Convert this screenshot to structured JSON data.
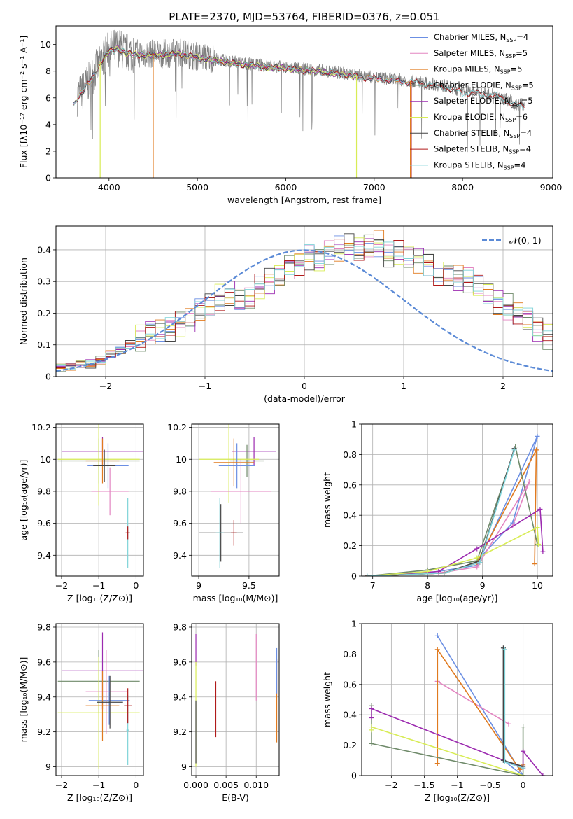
{
  "colors": {
    "Chabrier MILES": "#6b8fe3",
    "Salpeter MILES": "#e385c1",
    "Kroupa MILES": "#e07a1f",
    "Chabrier ELODIE": "#6f8a6a",
    "Salpeter ELODIE": "#9c2bb0",
    "Kroupa ELODIE": "#d8ec56",
    "Chabrier STELIB": "#444444",
    "Salpeter STELIB": "#b01a1a",
    "Kroupa STELIB": "#7fd3d8",
    "spectrum": "#808080",
    "normal": "#5b8ad6"
  },
  "chart_data": [
    {
      "id": "spectrum",
      "type": "line",
      "title": "PLATE=2370, MJD=53764, FIBERID=0376, z=0.051",
      "xlabel": "wavelength [Angstrom, rest frame]",
      "ylabel": "Flux [fλ10⁻¹⁷ erg cm⁻² s⁻¹ A⁻¹]",
      "xlim": [
        3400,
        9020
      ],
      "ylim": [
        0,
        11.4
      ],
      "xticks": [
        4000,
        5000,
        6000,
        7000,
        8000,
        9000
      ],
      "yticks": [
        0,
        2,
        4,
        6,
        8,
        10
      ],
      "grid": false,
      "legend_position": "top-right",
      "legend": [
        {
          "model": "Chabrier MILES",
          "label": "Chabrier MILES, N",
          "sub": "SSP",
          "tail": "=4"
        },
        {
          "model": "Salpeter MILES",
          "label": "Salpeter MILES, N",
          "sub": "SSP",
          "tail": "=5"
        },
        {
          "model": "Kroupa MILES",
          "label": "Kroupa MILES, N",
          "sub": "SSP",
          "tail": "=5"
        },
        {
          "model": "Chabrier ELODIE",
          "label": "Chabrier ELODIE, N",
          "sub": "SSP",
          "tail": "=5"
        },
        {
          "model": "Salpeter ELODIE",
          "label": "Salpeter ELODIE, N",
          "sub": "SSP",
          "tail": "=5"
        },
        {
          "model": "Kroupa ELODIE",
          "label": "Kroupa ELODIE, N",
          "sub": "SSP",
          "tail": "=6"
        },
        {
          "model": "Chabrier STELIB",
          "label": "Chabrier STELIB, N",
          "sub": "SSP",
          "tail": "=4"
        },
        {
          "model": "Salpeter STELIB",
          "label": "Salpeter STELIB, N",
          "sub": "SSP",
          "tail": "=4"
        },
        {
          "model": "Kroupa STELIB",
          "label": "Kroupa STELIB, N",
          "sub": "SSP",
          "tail": "=4"
        }
      ],
      "model_continuum": {
        "x": [
          3600,
          3650,
          3700,
          3800,
          3900,
          4000,
          4100,
          4200,
          4400,
          4600,
          4800,
          5000,
          5200,
          5500,
          5800,
          6000,
          6300,
          6600,
          6900,
          7200,
          7500,
          7800,
          8000,
          8200,
          8400,
          8600
        ],
        "y": [
          5.6,
          6.2,
          6.5,
          7.5,
          8.7,
          9.6,
          9.8,
          9.4,
          9.3,
          9.3,
          9.4,
          9.1,
          8.9,
          8.6,
          8.4,
          8.3,
          8.1,
          7.9,
          7.6,
          7.4,
          7.2,
          6.9,
          6.5,
          6.4,
          6.2,
          5.5
        ]
      },
      "model_spans": {
        "Chabrier MILES": [
          3600,
          7400
        ],
        "Salpeter MILES": [
          3600,
          7400
        ],
        "Kroupa MILES": [
          3600,
          7400
        ],
        "Chabrier ELODIE": [
          3900,
          6800
        ],
        "Salpeter ELODIE": [
          3900,
          6800
        ],
        "Kroupa ELODIE": [
          3900,
          6800
        ],
        "Chabrier STELIB": [
          3600,
          8700
        ],
        "Salpeter STELIB": [
          3600,
          8700
        ],
        "Kroupa STELIB": [
          3600,
          8700
        ]
      },
      "dropouts": [
        {
          "model": "Kroupa MILES",
          "x": 4500
        },
        {
          "model": "Kroupa ELODIE",
          "x": 3900
        },
        {
          "model": "Kroupa ELODIE",
          "x": 6800
        },
        {
          "model": "Salpeter STELIB",
          "x": 7420
        },
        {
          "model": "Kroupa MILES",
          "x": 7410
        }
      ]
    },
    {
      "id": "residuals",
      "type": "line",
      "xlabel": "(data-model)/error",
      "ylabel": "Normed distribution",
      "xlim": [
        -2.5,
        2.5
      ],
      "ylim": [
        0,
        0.475
      ],
      "xticks": [
        -2,
        -1,
        0,
        1,
        2
      ],
      "yticks": [
        0.0,
        0.1,
        0.2,
        0.3,
        0.4
      ],
      "grid": true,
      "legend_position": "top-right",
      "legend_label": "𝒩(0, 1)",
      "bin_width": 0.1,
      "bin_start": -2.5,
      "base_hist": [
        0.03,
        0.03,
        0.04,
        0.04,
        0.05,
        0.07,
        0.08,
        0.1,
        0.12,
        0.14,
        0.15,
        0.15,
        0.17,
        0.18,
        0.21,
        0.23,
        0.25,
        0.26,
        0.24,
        0.24,
        0.28,
        0.3,
        0.32,
        0.35,
        0.36,
        0.38,
        0.37,
        0.39,
        0.4,
        0.41,
        0.4,
        0.41,
        0.42,
        0.38,
        0.39,
        0.38,
        0.37,
        0.36,
        0.33,
        0.32,
        0.31,
        0.3,
        0.28,
        0.26,
        0.23,
        0.22,
        0.2,
        0.18,
        0.15,
        0.13,
        0.11,
        0.09,
        0.07,
        0.06,
        0.06,
        0.05,
        0.05,
        0.04,
        0.04,
        0.03,
        0.03,
        0.03,
        0.03,
        0.03,
        0.02,
        0.02,
        0.02,
        0.02,
        0.02,
        0.02,
        0.02,
        0.02
      ]
    },
    {
      "id": "age-vs-Z",
      "type": "scatter",
      "xlabel": "Z [log₁₀(Z/Z⊙)]",
      "ylabel": "age  [log₁₀(age/yr)]",
      "xlim": [
        -2.15,
        0.2
      ],
      "ylim": [
        9.27,
        10.22
      ],
      "xticks": [
        -2,
        -1,
        0
      ],
      "yticks": [
        9.4,
        9.6,
        9.8,
        10.0,
        10.2
      ],
      "grid": true,
      "points": [
        {
          "model": "Salpeter ELODIE",
          "x": -0.9,
          "y": 10.05,
          "xerr": 1.1,
          "yerr": 0.09
        },
        {
          "model": "Chabrier ELODIE",
          "x": -1.0,
          "y": 9.99,
          "xerr": 1.1,
          "yerr": 0.14
        },
        {
          "model": "Kroupa ELODIE",
          "x": -1.0,
          "y": 10.0,
          "xerr": 1.1,
          "yerr": 0.29
        },
        {
          "model": "Chabrier MILES",
          "x": -0.75,
          "y": 9.96,
          "xerr": 0.55,
          "yerr": 0.14
        },
        {
          "model": "Kroupa MILES",
          "x": -0.9,
          "y": 9.99,
          "xerr": 0.45,
          "yerr": 0.14
        },
        {
          "model": "Salpeter MILES",
          "x": -0.7,
          "y": 9.8,
          "xerr": 0.5,
          "yerr": 0.15
        },
        {
          "model": "Chabrier STELIB",
          "x": -0.85,
          "y": 9.96,
          "xerr": 0.3,
          "yerr": 0.1
        },
        {
          "model": "Kroupa STELIB",
          "x": -0.22,
          "y": 9.54,
          "xerr": 0.04,
          "yerr": 0.22
        },
        {
          "model": "Salpeter STELIB",
          "x": -0.22,
          "y": 9.54,
          "xerr": 0.06,
          "yerr": 0.04
        }
      ]
    },
    {
      "id": "age-vs-mass",
      "type": "scatter",
      "xlabel": "mass [log₁₀(M/M⊙)]",
      "ylabel": "",
      "xlim": [
        8.93,
        9.8
      ],
      "ylim": [
        9.27,
        10.22
      ],
      "xticks": [
        9.0,
        9.5
      ],
      "yticks": [
        9.4,
        9.6,
        9.8,
        10.0,
        10.2
      ],
      "grid": true,
      "points": [
        {
          "model": "Salpeter ELODIE",
          "x": 9.55,
          "y": 10.05,
          "xerr": 0.22,
          "yerr": 0.09
        },
        {
          "model": "Chabrier ELODIE",
          "x": 9.48,
          "y": 9.99,
          "xerr": 0.17,
          "yerr": 0.1
        },
        {
          "model": "Kroupa ELODIE",
          "x": 9.3,
          "y": 10.0,
          "xerr": 0.3,
          "yerr": 0.27
        },
        {
          "model": "Chabrier MILES",
          "x": 9.38,
          "y": 9.96,
          "xerr": 0.18,
          "yerr": 0.14
        },
        {
          "model": "Kroupa MILES",
          "x": 9.35,
          "y": 9.98,
          "xerr": 0.2,
          "yerr": 0.15
        },
        {
          "model": "Salpeter MILES",
          "x": 9.42,
          "y": 9.8,
          "xerr": 0.3,
          "yerr": 0.2
        },
        {
          "model": "Chabrier STELIB",
          "x": 9.22,
          "y": 9.54,
          "xerr": 0.22,
          "yerr": 0.18
        },
        {
          "model": "Kroupa STELIB",
          "x": 9.21,
          "y": 9.54,
          "xerr": 0.04,
          "yerr": 0.22
        },
        {
          "model": "Salpeter STELIB",
          "x": 9.35,
          "y": 9.54,
          "xerr": 0.03,
          "yerr": 0.08
        }
      ]
    },
    {
      "id": "weight-vs-age",
      "type": "line",
      "xlabel": "age  [log₁₀(age/yr)]",
      "ylabel": "mass weight",
      "xlim": [
        6.8,
        10.28
      ],
      "ylim": [
        0,
        1.0
      ],
      "xticks": [
        7,
        8,
        9,
        10
      ],
      "yticks": [
        0.0,
        0.2,
        0.4,
        0.6,
        0.8,
        1.0
      ],
      "grid": true,
      "series": [
        {
          "model": "Chabrier MILES",
          "x": [
            6.9,
            8.0,
            8.9,
            10.0,
            9.55,
            8.9
          ],
          "y": [
            0.0,
            0.02,
            0.07,
            0.92,
            0.35,
            0.1
          ]
        },
        {
          "model": "Salpeter MILES",
          "x": [
            6.9,
            8.2,
            8.9,
            9.85,
            9.55
          ],
          "y": [
            0.0,
            0.02,
            0.06,
            0.62,
            0.33
          ]
        },
        {
          "model": "Kroupa MILES",
          "x": [
            6.9,
            8.3,
            8.9,
            9.98,
            9.95
          ],
          "y": [
            0.0,
            0.02,
            0.09,
            0.83,
            0.08
          ]
        },
        {
          "model": "Chabrier ELODIE",
          "x": [
            6.9,
            8.0,
            8.9,
            9.6,
            10.0
          ],
          "y": [
            0.0,
            0.04,
            0.1,
            0.85,
            0.21
          ]
        },
        {
          "model": "Salpeter ELODIE",
          "x": [
            6.9,
            8.2,
            8.9,
            10.05,
            10.1
          ],
          "y": [
            0.0,
            0.03,
            0.18,
            0.44,
            0.16
          ]
        },
        {
          "model": "Kroupa ELODIE",
          "x": [
            6.9,
            8.0,
            8.9,
            10.0,
            10.02
          ],
          "y": [
            0.0,
            0.03,
            0.12,
            0.32,
            0.21
          ]
        },
        {
          "model": "Chabrier STELIB",
          "x": [
            6.9,
            8.3,
            8.95,
            9.58
          ],
          "y": [
            0.0,
            0.02,
            0.1,
            0.84
          ]
        },
        {
          "model": "Salpeter STELIB",
          "x": [
            6.9,
            8.3,
            8.95
          ],
          "y": [
            0.0,
            0.02,
            0.09
          ]
        },
        {
          "model": "Kroupa STELIB",
          "x": [
            6.9,
            8.3,
            8.95,
            9.58
          ],
          "y": [
            0.0,
            0.02,
            0.09,
            0.83
          ]
        }
      ]
    },
    {
      "id": "mass-vs-Z",
      "type": "scatter",
      "xlabel": "Z [log₁₀(Z/Z⊙)]",
      "ylabel": "mass [log₁₀(M/M⊙)]",
      "xlim": [
        -2.15,
        0.2
      ],
      "ylim": [
        8.95,
        9.82
      ],
      "xticks": [
        -2,
        -1,
        0
      ],
      "yticks": [
        9.0,
        9.2,
        9.4,
        9.6,
        9.8
      ],
      "grid": true,
      "points": [
        {
          "model": "Salpeter ELODIE",
          "x": -0.9,
          "y": 9.55,
          "xerr": 1.1,
          "yerr": 0.22
        },
        {
          "model": "Chabrier ELODIE",
          "x": -1.0,
          "y": 9.49,
          "xerr": 1.1,
          "yerr": 0.18
        },
        {
          "model": "Kroupa ELODIE",
          "x": -1.0,
          "y": 9.31,
          "xerr": 1.1,
          "yerr": 0.32
        },
        {
          "model": "Chabrier MILES",
          "x": -0.72,
          "y": 9.38,
          "xerr": 0.55,
          "yerr": 0.14
        },
        {
          "model": "Salpeter MILES",
          "x": -0.8,
          "y": 9.43,
          "xerr": 0.55,
          "yerr": 0.24
        },
        {
          "model": "Kroupa MILES",
          "x": -0.9,
          "y": 9.35,
          "xerr": 0.45,
          "yerr": 0.2
        },
        {
          "model": "Chabrier STELIB",
          "x": -0.7,
          "y": 9.37,
          "xerr": 0.35,
          "yerr": 0.15
        },
        {
          "model": "Kroupa STELIB",
          "x": -0.22,
          "y": 9.21,
          "xerr": 0.04,
          "yerr": 0.2
        },
        {
          "model": "Salpeter STELIB",
          "x": -0.22,
          "y": 9.35,
          "xerr": 0.1,
          "yerr": 0.1
        }
      ]
    },
    {
      "id": "mass-vs-ebv",
      "type": "scatter",
      "xlabel": "E(B-V)",
      "ylabel": "",
      "xlim": [
        -0.0007,
        0.0138
      ],
      "ylim": [
        8.95,
        9.82
      ],
      "xticks": [
        0.0,
        0.005,
        0.01
      ],
      "xtick_labels": [
        "0.000",
        "0.005",
        "0.010"
      ],
      "yticks": [
        9.0,
        9.2,
        9.4,
        9.6,
        9.8
      ],
      "grid": true,
      "points": [
        {
          "model": "Salpeter ELODIE",
          "x": 0.0,
          "y": 9.67,
          "xerr": 0.0,
          "yerr": 0.09
        },
        {
          "model": "Kroupa ELODIE",
          "x": 0.0,
          "y": 9.3,
          "xerr": 0.0,
          "yerr": 0.3
        },
        {
          "model": "Chabrier STELIB",
          "x": 0.0,
          "y": 9.2,
          "xerr": 0.0,
          "yerr": 0.18
        },
        {
          "model": "Salpeter STELIB",
          "x": 0.0033,
          "y": 9.33,
          "xerr": 0.0,
          "yerr": 0.16
        },
        {
          "model": "Salpeter MILES",
          "x": 0.01,
          "y": 9.57,
          "xerr": 0.0,
          "yerr": 0.19
        },
        {
          "model": "Kroupa MILES",
          "x": 0.0134,
          "y": 9.38,
          "xerr": 0.0,
          "yerr": 0.24
        },
        {
          "model": "Chabrier MILES",
          "x": 0.0134,
          "y": 9.55,
          "xerr": 0.0,
          "yerr": 0.13
        }
      ]
    },
    {
      "id": "weight-vs-Z",
      "type": "line",
      "xlabel": "Z [log₁₀(Z/Z⊙)]",
      "ylabel": "mass weight",
      "xlim": [
        -2.45,
        0.45
      ],
      "ylim": [
        0,
        1.0
      ],
      "xticks": [
        -2.0,
        -1.5,
        -1.0,
        -0.5,
        0.0
      ],
      "yticks": [
        0.0,
        0.2,
        0.4,
        0.6,
        0.8,
        1.0
      ],
      "grid": true,
      "series": [
        {
          "model": "Chabrier MILES",
          "x": [
            -1.3,
            0.0,
            -0.3
          ],
          "y": [
            0.92,
            0.0,
            0.1
          ]
        },
        {
          "model": "Salpeter MILES",
          "x": [
            -1.3,
            -0.22,
            -1.3
          ],
          "y": [
            0.62,
            0.34,
            0.62
          ]
        },
        {
          "model": "Kroupa MILES",
          "x": [
            -1.3,
            -1.3,
            -0.05,
            0.0
          ],
          "y": [
            0.08,
            0.83,
            0.04,
            0.07
          ]
        },
        {
          "model": "Chabrier ELODIE",
          "x": [
            -2.3,
            -2.3,
            0.0,
            0.0
          ],
          "y": [
            0.46,
            0.21,
            0.0,
            0.32
          ]
        },
        {
          "model": "Salpeter ELODIE",
          "x": [
            -2.3,
            -2.3,
            0.0,
            0.0,
            0.3
          ],
          "y": [
            0.38,
            0.44,
            0.05,
            0.16,
            0.0
          ]
        },
        {
          "model": "Kroupa ELODIE",
          "x": [
            -2.3,
            -2.3,
            0.0
          ],
          "y": [
            0.3,
            0.32,
            0.0
          ]
        },
        {
          "model": "Chabrier STELIB",
          "x": [
            -0.3,
            -0.3,
            0.0
          ],
          "y": [
            0.84,
            0.1,
            0.06
          ]
        },
        {
          "model": "Kroupa STELIB",
          "x": [
            -0.28,
            -0.28,
            0.0
          ],
          "y": [
            0.83,
            0.09,
            0.05
          ]
        }
      ]
    }
  ]
}
